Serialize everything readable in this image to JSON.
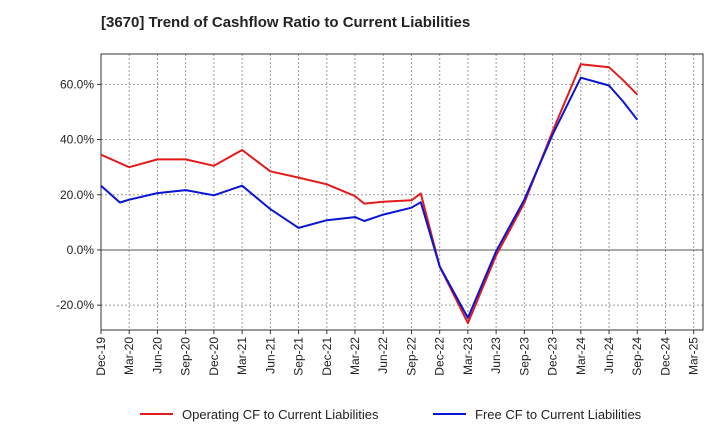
{
  "chart_data": {
    "type": "line",
    "title": "[3670]  Trend of Cashflow Ratio to Current Liabilities",
    "xlabel": "",
    "ylabel": "",
    "ylim": [
      -29,
      71
    ],
    "grid": true,
    "legend_position": "bottom",
    "x_tick_labels": [
      "Dec-19",
      "Mar-20",
      "Jun-20",
      "Sep-20",
      "Dec-20",
      "Mar-21",
      "Jun-21",
      "Sep-21",
      "Dec-21",
      "Mar-22",
      "Jun-22",
      "Sep-22",
      "Dec-22",
      "Mar-23",
      "Jun-23",
      "Sep-23",
      "Dec-23",
      "Mar-24",
      "Jun-24",
      "Sep-24",
      "Dec-24",
      "Mar-25"
    ],
    "y_ticks": [
      -20,
      0,
      20,
      40,
      60
    ],
    "y_tick_labels": [
      "-20.0%",
      "0.0%",
      "20.0%",
      "40.0%",
      "60.0%"
    ],
    "series": [
      {
        "name": "Operating CF to Current Liabilities",
        "color": "#e31a1c",
        "points": [
          [
            0,
            34.5
          ],
          [
            1,
            30
          ],
          [
            2,
            32.8
          ],
          [
            3,
            32.8
          ],
          [
            4,
            30.5
          ],
          [
            5,
            36.2
          ],
          [
            6,
            28.5
          ],
          [
            7,
            26.2
          ],
          [
            8,
            23.8
          ],
          [
            9,
            19.5
          ],
          [
            9.33,
            16.8
          ],
          [
            10,
            17.5
          ],
          [
            11,
            18
          ],
          [
            11.33,
            20.5
          ],
          [
            12,
            -6
          ],
          [
            13,
            -26.5
          ],
          [
            14,
            -2
          ],
          [
            15,
            17
          ],
          [
            16,
            43
          ],
          [
            17,
            67.3
          ],
          [
            18,
            66.2
          ],
          [
            18.5,
            61.5
          ],
          [
            19,
            56.3
          ]
        ]
      },
      {
        "name": "Free CF to Current Liabilities",
        "color": "#0a14d4",
        "points": [
          [
            0,
            23.3
          ],
          [
            0.67,
            17.2
          ],
          [
            1,
            18.2
          ],
          [
            2,
            20.6
          ],
          [
            3,
            21.7
          ],
          [
            4,
            19.8
          ],
          [
            5,
            23.3
          ],
          [
            6,
            14.8
          ],
          [
            7,
            8
          ],
          [
            8,
            10.8
          ],
          [
            9,
            11.9
          ],
          [
            9.33,
            10.5
          ],
          [
            10,
            12.8
          ],
          [
            11,
            15.3
          ],
          [
            11.33,
            17.3
          ],
          [
            12,
            -6
          ],
          [
            13,
            -24.6
          ],
          [
            14,
            -0.5
          ],
          [
            15,
            18.2
          ],
          [
            16,
            41.8
          ],
          [
            17,
            62.4
          ],
          [
            18,
            59.6
          ],
          [
            18.5,
            53.8
          ],
          [
            19,
            47.2
          ]
        ]
      }
    ]
  }
}
